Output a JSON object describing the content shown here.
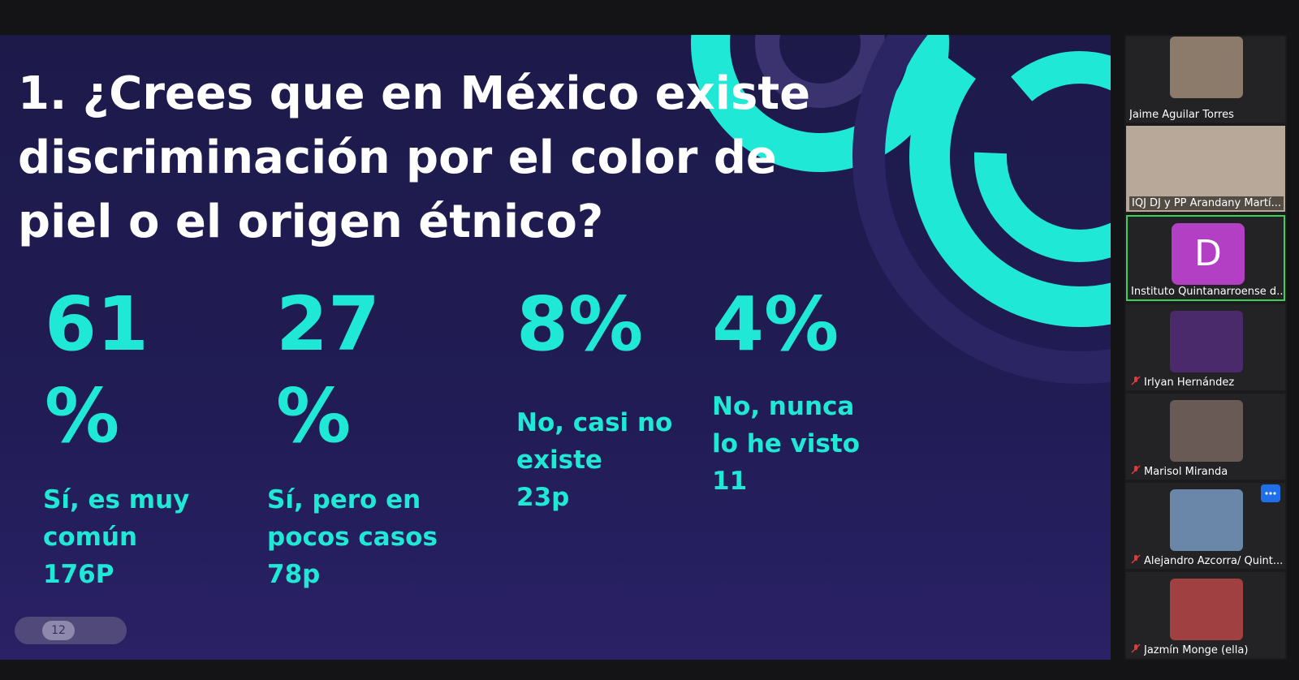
{
  "slide": {
    "title_lines": [
      "1. ¿Crees que en México existe",
      "discriminación por el color de",
      "piel o el origen étnico?"
    ],
    "stats": [
      {
        "value": "61 %",
        "label_lines": [
          "Sí, es muy",
          "común",
          "176P"
        ]
      },
      {
        "value": "27 %",
        "label_lines": [
          "Sí, pero en",
          "pocos casos",
          "78p"
        ]
      },
      {
        "value": "8%",
        "label_lines": [
          "No, casi no",
          "existe",
          "23p"
        ]
      },
      {
        "value": "4%",
        "label_lines": [
          "No,  nunca",
          "lo  he  visto",
          "11"
        ]
      }
    ],
    "page": "12"
  },
  "participants": [
    {
      "name": "Jaime Aguilar Torres",
      "muted": false
    },
    {
      "name": "IQJ DJ y PP Arandany Martí...",
      "muted": false
    },
    {
      "name": "Instituto Quintanarroense d...",
      "avatar": "D",
      "muted": false
    },
    {
      "name": "Irlyan Hernández",
      "muted": true
    },
    {
      "name": "Marisol Miranda",
      "muted": true
    },
    {
      "name": "Alejandro Azcorra/ Quint...",
      "muted": true
    },
    {
      "name": "Jazmín Monge (ella)",
      "muted": true
    }
  ]
}
